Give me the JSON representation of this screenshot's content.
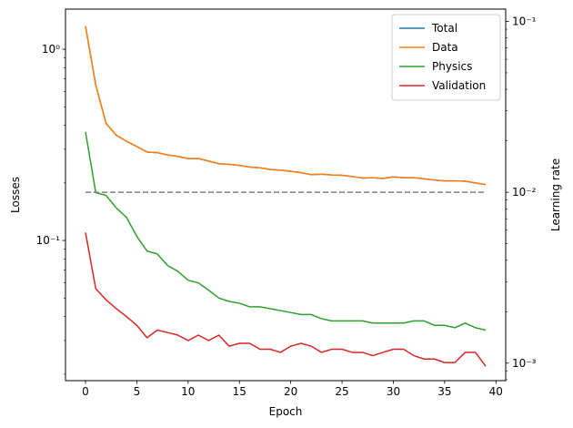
{
  "chart_data": {
    "type": "line",
    "xlabel": "Epoch",
    "ylabel": "Losses",
    "y2label": "Learning rate",
    "xlim": [
      -1.95,
      40.95
    ],
    "ylim": [
      0.0185,
      1.62
    ],
    "y2lim": [
      0.00079,
      0.118
    ],
    "yscale": "log",
    "y2scale": "log",
    "grid": false,
    "legend_position": "upper-right",
    "x_ticks": [
      0,
      5,
      10,
      15,
      20,
      25,
      30,
      35,
      40
    ],
    "x_tick_labels": [
      "0",
      "5",
      "10",
      "15",
      "20",
      "25",
      "30",
      "35",
      "40"
    ],
    "y_major_ticks": [
      0.1,
      1
    ],
    "y_major_tick_labels": [
      "10⁻¹",
      "10⁰"
    ],
    "y2_major_ticks": [
      0.001,
      0.01,
      0.1
    ],
    "y2_major_tick_labels": [
      "10⁻³",
      "10⁻²",
      "10⁻¹"
    ],
    "x": [
      0,
      1,
      2,
      3,
      4,
      5,
      6,
      7,
      8,
      9,
      10,
      11,
      12,
      13,
      14,
      15,
      16,
      17,
      18,
      19,
      20,
      21,
      22,
      23,
      24,
      25,
      26,
      27,
      28,
      29,
      30,
      31,
      32,
      33,
      34,
      35,
      36,
      37,
      38,
      39
    ],
    "series": [
      {
        "name": "Total",
        "color": "#1f77b4",
        "axis": "left",
        "values": [
          1.32,
          0.65,
          0.41,
          0.355,
          0.33,
          0.31,
          0.29,
          0.288,
          0.28,
          0.275,
          0.268,
          0.268,
          0.26,
          0.252,
          0.25,
          0.247,
          0.242,
          0.24,
          0.235,
          0.233,
          0.23,
          0.226,
          0.221,
          0.222,
          0.22,
          0.219,
          0.216,
          0.212,
          0.213,
          0.211,
          0.215,
          0.213,
          0.213,
          0.21,
          0.207,
          0.205,
          0.205,
          0.204,
          0.2,
          0.196
        ]
      },
      {
        "name": "Data",
        "color": "#ff7f0e",
        "axis": "left",
        "values": [
          1.32,
          0.65,
          0.41,
          0.355,
          0.33,
          0.31,
          0.29,
          0.288,
          0.28,
          0.275,
          0.268,
          0.268,
          0.26,
          0.252,
          0.25,
          0.247,
          0.242,
          0.24,
          0.235,
          0.233,
          0.23,
          0.226,
          0.221,
          0.222,
          0.22,
          0.219,
          0.216,
          0.212,
          0.213,
          0.211,
          0.215,
          0.213,
          0.213,
          0.21,
          0.207,
          0.205,
          0.205,
          0.204,
          0.2,
          0.196
        ]
      },
      {
        "name": "Physics",
        "color": "#2ca02c",
        "axis": "left",
        "values": [
          0.37,
          0.178,
          0.172,
          0.148,
          0.132,
          0.105,
          0.088,
          0.085,
          0.074,
          0.069,
          0.062,
          0.06,
          0.055,
          0.05,
          0.048,
          0.047,
          0.045,
          0.045,
          0.044,
          0.043,
          0.042,
          0.041,
          0.041,
          0.039,
          0.038,
          0.038,
          0.038,
          0.038,
          0.037,
          0.037,
          0.037,
          0.037,
          0.038,
          0.038,
          0.036,
          0.036,
          0.035,
          0.037,
          0.035,
          0.034
        ]
      },
      {
        "name": "Validation",
        "color": "#d62728",
        "axis": "left",
        "values": [
          0.11,
          0.056,
          0.049,
          0.044,
          0.04,
          0.036,
          0.031,
          0.034,
          0.033,
          0.032,
          0.03,
          0.032,
          0.03,
          0.032,
          0.028,
          0.029,
          0.029,
          0.027,
          0.027,
          0.026,
          0.028,
          0.029,
          0.028,
          0.026,
          0.027,
          0.027,
          0.026,
          0.026,
          0.025,
          0.026,
          0.027,
          0.027,
          0.025,
          0.024,
          0.024,
          0.023,
          0.023,
          0.026,
          0.026,
          0.022
        ]
      },
      {
        "name": "",
        "color": "#808080",
        "axis": "right",
        "dashed": true,
        "values": [
          0.01,
          0.01,
          0.01,
          0.01,
          0.01,
          0.01,
          0.01,
          0.01,
          0.01,
          0.01,
          0.01,
          0.01,
          0.01,
          0.01,
          0.01,
          0.01,
          0.01,
          0.01,
          0.01,
          0.01,
          0.01,
          0.01,
          0.01,
          0.01,
          0.01,
          0.01,
          0.01,
          0.01,
          0.01,
          0.01,
          0.01,
          0.01,
          0.01,
          0.01,
          0.01,
          0.01,
          0.01,
          0.01,
          0.01,
          0.01
        ]
      }
    ]
  }
}
